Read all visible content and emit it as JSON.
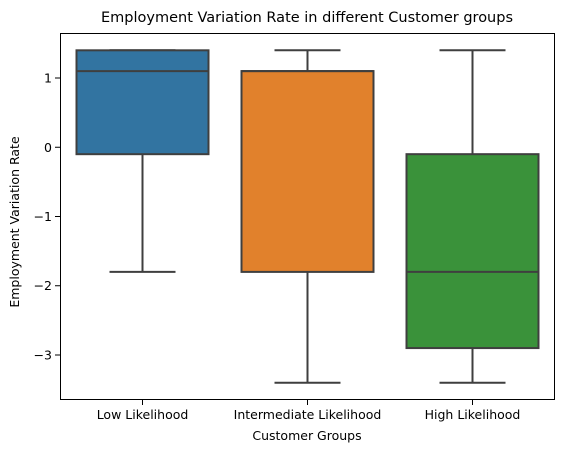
{
  "chart_data": {
    "type": "box",
    "title": "Employment Variation Rate in different Customer groups",
    "xlabel": "Customer Groups",
    "ylabel": "Employment Variation Rate",
    "ylim": [
      -3.65,
      1.65
    ],
    "yticks": [
      1,
      0,
      -1,
      -2,
      -3
    ],
    "ytick_labels": [
      "1",
      "0",
      "−1",
      "−2",
      "−3"
    ],
    "grid": false,
    "legend": "none",
    "categories": [
      "Low Likelihood",
      "Intermediate Likelihood",
      "High Likelihood"
    ],
    "boxes": [
      {
        "category": "Low Likelihood",
        "whisker_low": -1.8,
        "q1": -0.1,
        "median": 1.1,
        "q3": 1.4,
        "whisker_high": 1.4,
        "color": "#3274a1"
      },
      {
        "category": "Intermediate Likelihood",
        "whisker_low": -3.4,
        "q1": -1.8,
        "median": 1.1,
        "q3": 1.1,
        "whisker_high": 1.4,
        "color": "#e1812c"
      },
      {
        "category": "High Likelihood",
        "whisker_low": -3.4,
        "q1": -2.9,
        "median": -1.8,
        "q3": -0.1,
        "whisker_high": 1.4,
        "color": "#3a923a"
      }
    ],
    "line_color": "#3f3f3f"
  }
}
